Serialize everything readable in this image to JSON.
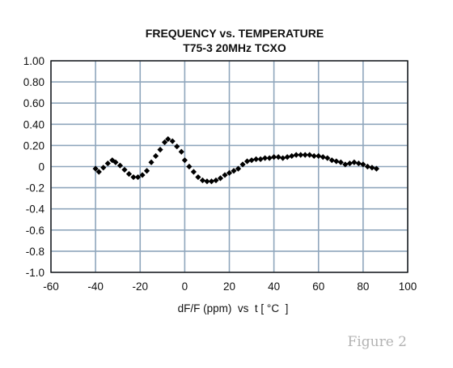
{
  "chart_data": {
    "type": "scatter",
    "title": "FREQUENCY vs. TEMPERATURE",
    "subtitle": "T75-3 20MHz TCXO",
    "xlabel": "dF/F (ppm)  vs  t [ °C  ]",
    "ylabel": "",
    "xlim": [
      -60,
      100
    ],
    "ylim": [
      -1.0,
      1.0
    ],
    "x_ticks": [
      -60,
      -40,
      -20,
      0,
      20,
      40,
      60,
      80,
      100
    ],
    "y_ticks": [
      1.0,
      0.8,
      0.6,
      0.4,
      0.2,
      0,
      -0.2,
      -0.4,
      -0.6,
      -0.8,
      -1.0
    ],
    "x_tick_labels": [
      "-60",
      "-40",
      "-20",
      "0",
      "20",
      "40",
      "60",
      "80",
      "100"
    ],
    "y_tick_labels": [
      "1.00",
      "0.80",
      "0.60",
      "0.40",
      "0.20",
      "0",
      "-0.2",
      "-0.4",
      "-0.6",
      "-0.8",
      "-1.0"
    ],
    "grid": true,
    "marker": "diamond",
    "series": [
      {
        "name": "",
        "color": "#000000",
        "points": [
          [
            -40,
            -0.02
          ],
          [
            -38.5,
            -0.05
          ],
          [
            -36.5,
            -0.01
          ],
          [
            -34.5,
            0.03
          ],
          [
            -32.5,
            0.06
          ],
          [
            -31,
            0.04
          ],
          [
            -29,
            0.01
          ],
          [
            -27,
            -0.03
          ],
          [
            -25,
            -0.07
          ],
          [
            -23,
            -0.1
          ],
          [
            -21,
            -0.1
          ],
          [
            -19,
            -0.08
          ],
          [
            -17,
            -0.04
          ],
          [
            -15,
            0.04
          ],
          [
            -13,
            0.1
          ],
          [
            -11,
            0.16
          ],
          [
            -9,
            0.23
          ],
          [
            -7.5,
            0.26
          ],
          [
            -5.5,
            0.24
          ],
          [
            -3.5,
            0.19
          ],
          [
            -1.5,
            0.14
          ],
          [
            0,
            0.06
          ],
          [
            2,
            0.0
          ],
          [
            4,
            -0.05
          ],
          [
            6,
            -0.1
          ],
          [
            8,
            -0.13
          ],
          [
            10,
            -0.14
          ],
          [
            12,
            -0.14
          ],
          [
            14,
            -0.13
          ],
          [
            16,
            -0.11
          ],
          [
            18,
            -0.08
          ],
          [
            20,
            -0.06
          ],
          [
            22,
            -0.04
          ],
          [
            24,
            -0.02
          ],
          [
            26,
            0.02
          ],
          [
            28,
            0.05
          ],
          [
            30,
            0.06
          ],
          [
            32,
            0.07
          ],
          [
            34,
            0.07
          ],
          [
            36,
            0.08
          ],
          [
            38,
            0.08
          ],
          [
            40,
            0.09
          ],
          [
            42,
            0.09
          ],
          [
            44,
            0.08
          ],
          [
            46,
            0.09
          ],
          [
            48,
            0.1
          ],
          [
            50,
            0.11
          ],
          [
            52,
            0.11
          ],
          [
            54,
            0.11
          ],
          [
            56,
            0.11
          ],
          [
            58,
            0.1
          ],
          [
            60,
            0.1
          ],
          [
            62,
            0.09
          ],
          [
            64,
            0.08
          ],
          [
            66,
            0.06
          ],
          [
            68,
            0.05
          ],
          [
            70,
            0.04
          ],
          [
            72,
            0.02
          ],
          [
            74,
            0.03
          ],
          [
            76,
            0.04
          ],
          [
            78,
            0.03
          ],
          [
            80,
            0.02
          ],
          [
            82,
            0.0
          ],
          [
            84,
            -0.01
          ],
          [
            86,
            -0.02
          ]
        ]
      }
    ]
  },
  "figure_tag": "Figure 2",
  "colors": {
    "plot_background": "#ffffff",
    "grid": "#8fa6bc",
    "frame": "#111111",
    "marker": "#000000",
    "figure_tag": "#b3b3b3"
  }
}
